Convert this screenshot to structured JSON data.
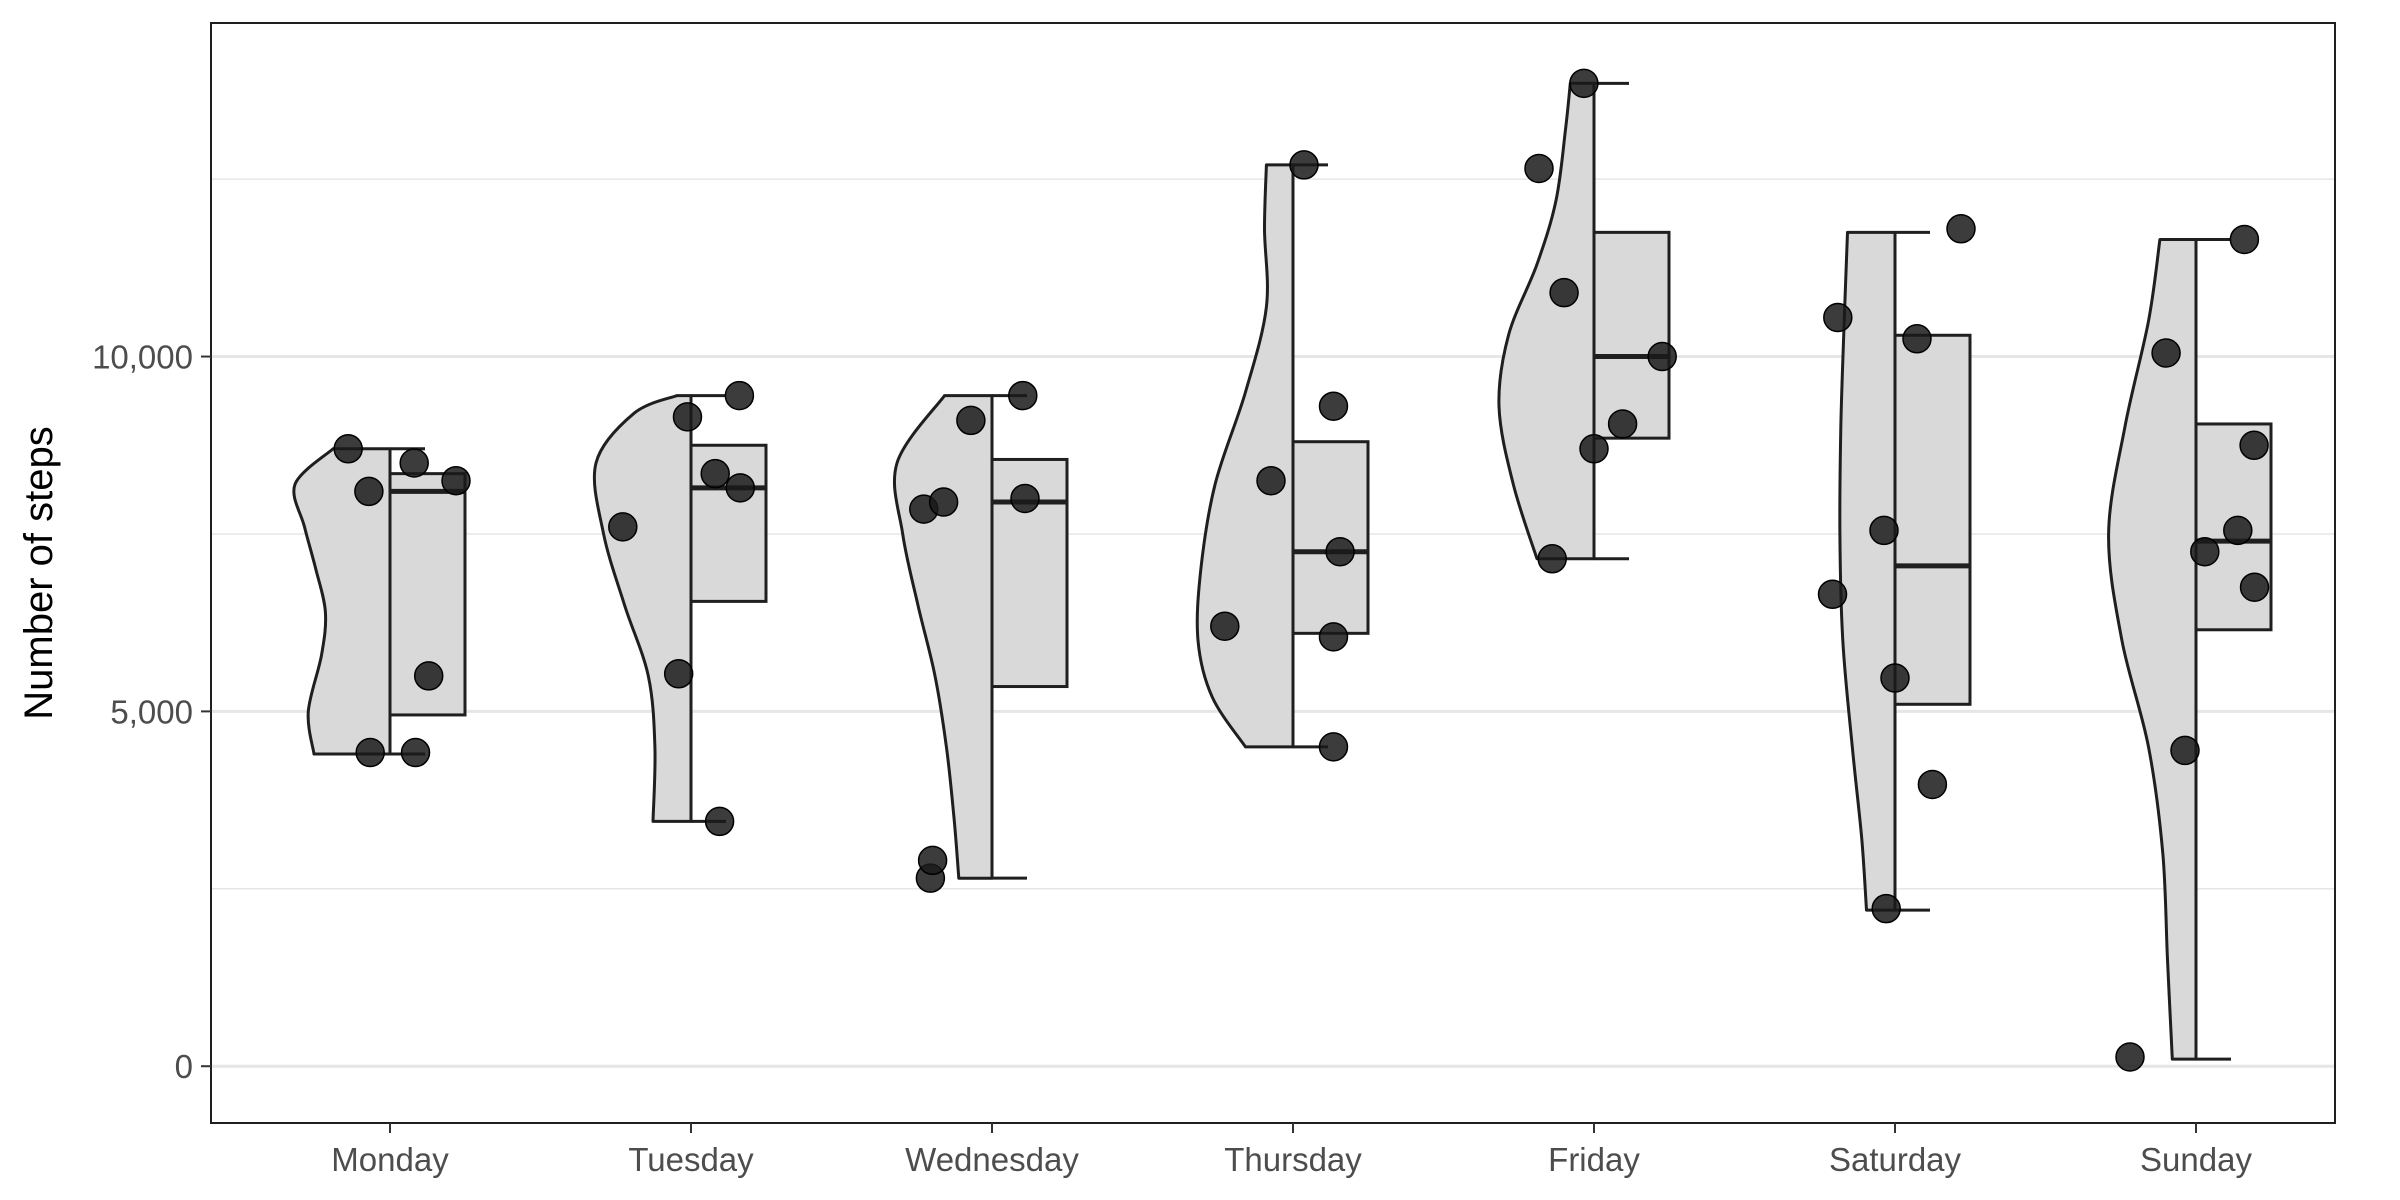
{
  "chart_data": {
    "type": "raincloud",
    "title": "",
    "xlabel": "",
    "ylabel": "Number of steps",
    "ylim": [
      -800,
      14700
    ],
    "y_ticks": [
      {
        "value": 0,
        "label": "0"
      },
      {
        "value": 5000,
        "label": "5,000"
      },
      {
        "value": 10000,
        "label": "10,000"
      }
    ],
    "y_minor_gridlines": [
      2500,
      7500,
      12500
    ],
    "grid": true,
    "legend": "none",
    "colors": {
      "fill": "#d9d9d9",
      "stroke": "#1f1f1f",
      "point": "#1a1a1a",
      "grid": "#e6e6e6"
    },
    "categories": [
      "Monday",
      "Tuesday",
      "Wednesday",
      "Thursday",
      "Friday",
      "Saturday",
      "Sunday"
    ],
    "groups": [
      {
        "name": "Monday",
        "box": {
          "q1": 4950,
          "median": 8100,
          "q3": 8350
        },
        "whisker": {
          "low": 4400,
          "high": 8700
        },
        "density": [
          [
            4400,
            0.8
          ],
          [
            5000,
            0.86
          ],
          [
            5800,
            0.72
          ],
          [
            6400,
            0.68
          ],
          [
            7000,
            0.78
          ],
          [
            7600,
            0.9
          ],
          [
            8200,
            1.0
          ],
          [
            8700,
            0.6
          ]
        ],
        "points": [
          {
            "offset": -0.95,
            "y": 8700
          },
          {
            "offset": -0.48,
            "y": 8100
          },
          {
            "offset": -0.45,
            "y": 4420
          },
          {
            "offset": 0.55,
            "y": 8500
          },
          {
            "offset": 0.58,
            "y": 4420
          },
          {
            "offset": 0.88,
            "y": 5500
          },
          {
            "offset": 1.5,
            "y": 8250
          }
        ]
      },
      {
        "name": "Tuesday",
        "box": {
          "q1": 6550,
          "median": 8150,
          "q3": 8750
        },
        "whisker": {
          "low": 3450,
          "high": 9450
        },
        "density": [
          [
            3450,
            0.4
          ],
          [
            4500,
            0.38
          ],
          [
            5500,
            0.45
          ],
          [
            6500,
            0.7
          ],
          [
            7500,
            0.92
          ],
          [
            8500,
            1.0
          ],
          [
            9200,
            0.6
          ],
          [
            9450,
            0.15
          ]
        ],
        "points": [
          {
            "offset": -1.55,
            "y": 7600
          },
          {
            "offset": -0.28,
            "y": 5530
          },
          {
            "offset": -0.08,
            "y": 9150
          },
          {
            "offset": 0.55,
            "y": 8350
          },
          {
            "offset": 0.65,
            "y": 3450
          },
          {
            "offset": 1.1,
            "y": 9450
          },
          {
            "offset": 1.12,
            "y": 8150
          }
        ]
      },
      {
        "name": "Wednesday",
        "box": {
          "q1": 5350,
          "median": 7950,
          "q3": 8550
        },
        "whisker": {
          "low": 2650,
          "high": 9450
        },
        "density": [
          [
            2650,
            0.35
          ],
          [
            3500,
            0.4
          ],
          [
            4500,
            0.48
          ],
          [
            5500,
            0.6
          ],
          [
            6500,
            0.78
          ],
          [
            7500,
            0.94
          ],
          [
            8500,
            1.0
          ],
          [
            9450,
            0.5
          ]
        ],
        "points": [
          {
            "offset": -1.55,
            "y": 7850
          },
          {
            "offset": -1.4,
            "y": 2650
          },
          {
            "offset": -1.35,
            "y": 2900
          },
          {
            "offset": -1.1,
            "y": 7950
          },
          {
            "offset": -0.48,
            "y": 9100
          },
          {
            "offset": 0.7,
            "y": 9450
          },
          {
            "offset": 0.75,
            "y": 8000
          }
        ]
      },
      {
        "name": "Thursday",
        "box": {
          "q1": 6100,
          "median": 7250,
          "q3": 8800
        },
        "whisker": {
          "low": 4500,
          "high": 12700
        },
        "density": [
          [
            4500,
            0.5
          ],
          [
            5200,
            0.85
          ],
          [
            6000,
            1.0
          ],
          [
            7000,
            0.97
          ],
          [
            8200,
            0.82
          ],
          [
            9500,
            0.5
          ],
          [
            10700,
            0.28
          ],
          [
            11800,
            0.3
          ],
          [
            12700,
            0.28
          ]
        ],
        "points": [
          {
            "offset": -1.55,
            "y": 6200
          },
          {
            "offset": -0.5,
            "y": 8250
          },
          {
            "offset": 0.25,
            "y": 12700
          },
          {
            "offset": 0.92,
            "y": 4500
          },
          {
            "offset": 0.92,
            "y": 9300
          },
          {
            "offset": 0.92,
            "y": 6050
          },
          {
            "offset": 1.07,
            "y": 7250
          }
        ]
      },
      {
        "name": "Friday",
        "box": {
          "q1": 8850,
          "median": 10000,
          "q3": 11750
        },
        "whisker": {
          "low": 7150,
          "high": 13850
        },
        "density": [
          [
            7150,
            0.6
          ],
          [
            8200,
            0.85
          ],
          [
            9300,
            1.0
          ],
          [
            10300,
            0.9
          ],
          [
            11300,
            0.6
          ],
          [
            12200,
            0.4
          ],
          [
            13200,
            0.3
          ],
          [
            13850,
            0.25
          ]
        ],
        "points": [
          {
            "offset": -1.25,
            "y": 12650
          },
          {
            "offset": -0.95,
            "y": 7150
          },
          {
            "offset": -0.68,
            "y": 10900
          },
          {
            "offset": -0.23,
            "y": 13850
          },
          {
            "offset": 0.0,
            "y": 8700
          },
          {
            "offset": 0.65,
            "y": 9050
          },
          {
            "offset": 1.55,
            "y": 10000
          }
        ]
      },
      {
        "name": "Saturday",
        "box": {
          "q1": 5100,
          "median": 7050,
          "q3": 10300
        },
        "whisker": {
          "low": 2200,
          "high": 11750
        },
        "density": [
          [
            2200,
            0.3
          ],
          [
            3200,
            0.35
          ],
          [
            4500,
            0.45
          ],
          [
            6000,
            0.55
          ],
          [
            7500,
            0.58
          ],
          [
            9000,
            0.57
          ],
          [
            10300,
            0.54
          ],
          [
            11750,
            0.5
          ]
        ],
        "points": [
          {
            "offset": -1.3,
            "y": 10550
          },
          {
            "offset": -1.42,
            "y": 6650
          },
          {
            "offset": -0.25,
            "y": 7550
          },
          {
            "offset": -0.2,
            "y": 2220
          },
          {
            "offset": 0.0,
            "y": 5470
          },
          {
            "offset": 0.5,
            "y": 10250
          },
          {
            "offset": 0.85,
            "y": 3970
          },
          {
            "offset": 1.5,
            "y": 11800
          }
        ]
      },
      {
        "name": "Sunday",
        "box": {
          "q1": 6150,
          "median": 7400,
          "q3": 9050
        },
        "whisker": {
          "low": 100,
          "high": 11650
        },
        "density": [
          [
            100,
            0.25
          ],
          [
            1500,
            0.3
          ],
          [
            3000,
            0.35
          ],
          [
            4500,
            0.5
          ],
          [
            6000,
            0.78
          ],
          [
            7500,
            0.92
          ],
          [
            9000,
            0.75
          ],
          [
            10500,
            0.5
          ],
          [
            11650,
            0.38
          ]
        ],
        "points": [
          {
            "offset": -1.5,
            "y": 130
          },
          {
            "offset": -0.68,
            "y": 10050
          },
          {
            "offset": -0.25,
            "y": 4450
          },
          {
            "offset": 0.2,
            "y": 7250
          },
          {
            "offset": 0.95,
            "y": 7550
          },
          {
            "offset": 1.1,
            "y": 11650
          },
          {
            "offset": 1.32,
            "y": 8750
          },
          {
            "offset": 1.33,
            "y": 6750
          }
        ]
      }
    ]
  }
}
